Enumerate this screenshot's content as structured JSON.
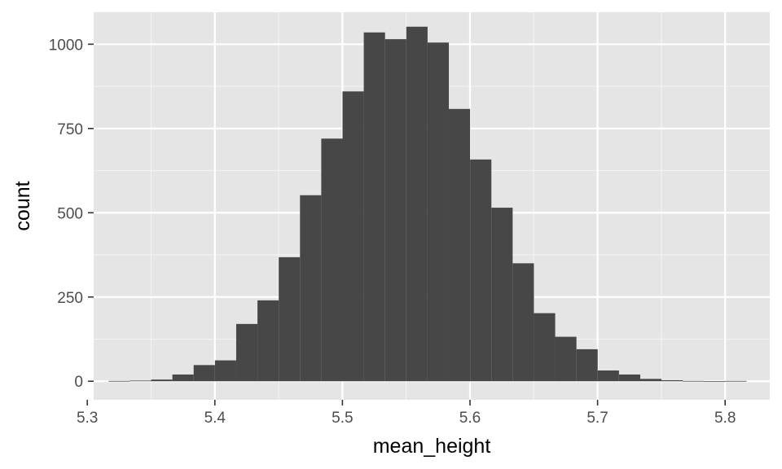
{
  "chart_data": {
    "type": "bar",
    "subtype": "histogram",
    "xlabel": "mean_height",
    "ylabel": "count",
    "xlim": [
      5.305,
      5.835
    ],
    "ylim": [
      -55,
      1095
    ],
    "x_ticks": [
      {
        "value": 5.3,
        "label": "5.3"
      },
      {
        "value": 5.4,
        "label": "5.4"
      },
      {
        "value": 5.5,
        "label": "5.5"
      },
      {
        "value": 5.6,
        "label": "5.6"
      },
      {
        "value": 5.7,
        "label": "5.7"
      },
      {
        "value": 5.8,
        "label": "5.8"
      }
    ],
    "y_ticks": [
      {
        "value": 0,
        "label": "0"
      },
      {
        "value": 250,
        "label": "250"
      },
      {
        "value": 500,
        "label": "500"
      },
      {
        "value": 750,
        "label": "750"
      },
      {
        "value": 1000,
        "label": "1000"
      }
    ],
    "grid": true,
    "panel_background": "#e5e5e5",
    "bar_color": "#474747",
    "bin_width": 0.01667,
    "bin_start": 5.3167,
    "values": [
      1,
      2,
      5,
      20,
      48,
      62,
      170,
      240,
      368,
      552,
      720,
      860,
      1035,
      1015,
      1052,
      1005,
      808,
      658,
      515,
      350,
      202,
      132,
      95,
      32,
      20,
      7,
      3,
      1,
      0,
      1
    ]
  }
}
